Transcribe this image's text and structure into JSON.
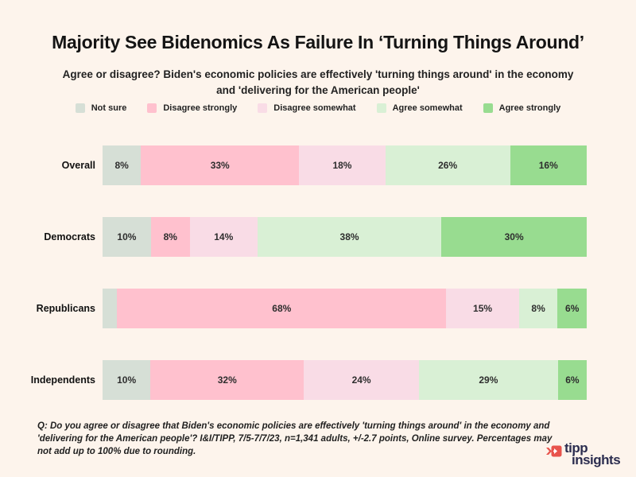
{
  "title": "Majority See Bidenomics As Failure In ‘Turning Things Around’",
  "subtitle": "Agree or disagree? Biden's economic policies are effectively 'turning things around' in the economy and 'delivering for the American people'",
  "colors": {
    "background": "#fdf4ec",
    "not_sure": "#d6dfd6",
    "disagree_strongly": "#ffc1ce",
    "disagree_somewhat": "#f9dce6",
    "agree_somewhat": "#d9f0d5",
    "agree_strongly": "#98dc90",
    "text": "#1c1c1c",
    "logo_red": "#e8534c",
    "logo_navy": "#2b2d4f"
  },
  "legend": [
    {
      "label": "Not sure",
      "color": "#d6dfd6"
    },
    {
      "label": "Disagree strongly",
      "color": "#ffc1ce"
    },
    {
      "label": "Disagree somewhat",
      "color": "#f9dce6"
    },
    {
      "label": "Agree somewhat",
      "color": "#d9f0d5"
    },
    {
      "label": "Agree strongly",
      "color": "#98dc90"
    }
  ],
  "chart_data": {
    "type": "bar",
    "variant": "horizontal-stacked-100pct",
    "categories": [
      "Overall",
      "Democrats",
      "Republicans",
      "Independents"
    ],
    "series": [
      {
        "name": "Not sure",
        "color": "#d6dfd6",
        "values": [
          8,
          10,
          3,
          10
        ],
        "labels": [
          "8%",
          "10%",
          "",
          "10%"
        ]
      },
      {
        "name": "Disagree strongly",
        "color": "#ffc1ce",
        "values": [
          33,
          8,
          68,
          32
        ],
        "labels": [
          "33%",
          "8%",
          "68%",
          "32%"
        ]
      },
      {
        "name": "Disagree somewhat",
        "color": "#f9dce6",
        "values": [
          18,
          14,
          15,
          24
        ],
        "labels": [
          "18%",
          "14%",
          "15%",
          "24%"
        ]
      },
      {
        "name": "Agree somewhat",
        "color": "#d9f0d5",
        "values": [
          26,
          38,
          8,
          29
        ],
        "labels": [
          "26%",
          "38%",
          "8%",
          "29%"
        ]
      },
      {
        "name": "Agree strongly",
        "color": "#98dc90",
        "values": [
          16,
          30,
          6,
          6
        ],
        "labels": [
          "16%",
          "30%",
          "6%",
          "6%"
        ]
      }
    ],
    "title": "Majority See Bidenomics As Failure In ‘Turning Things Around’",
    "xlabel": "",
    "ylabel": "",
    "legend_position": "top",
    "grid": false,
    "notes": "Each row normalized to full bar width; Republicans 'Not sure' segment (~3%) has no printed label. Percentages may not add to 100 due to rounding."
  },
  "footnote": "Q: Do you agree or disagree that Biden's economic policies are effectively 'turning things around' in the economy and 'delivering for the American people'? I&I/TIPP, 7/5-7/7/23, n=1,341 adults, +/-2.7 points, Online survey. Percentages may not add up to 100% due to rounding.",
  "logo": {
    "line1": "tipp",
    "line2": "insights"
  }
}
